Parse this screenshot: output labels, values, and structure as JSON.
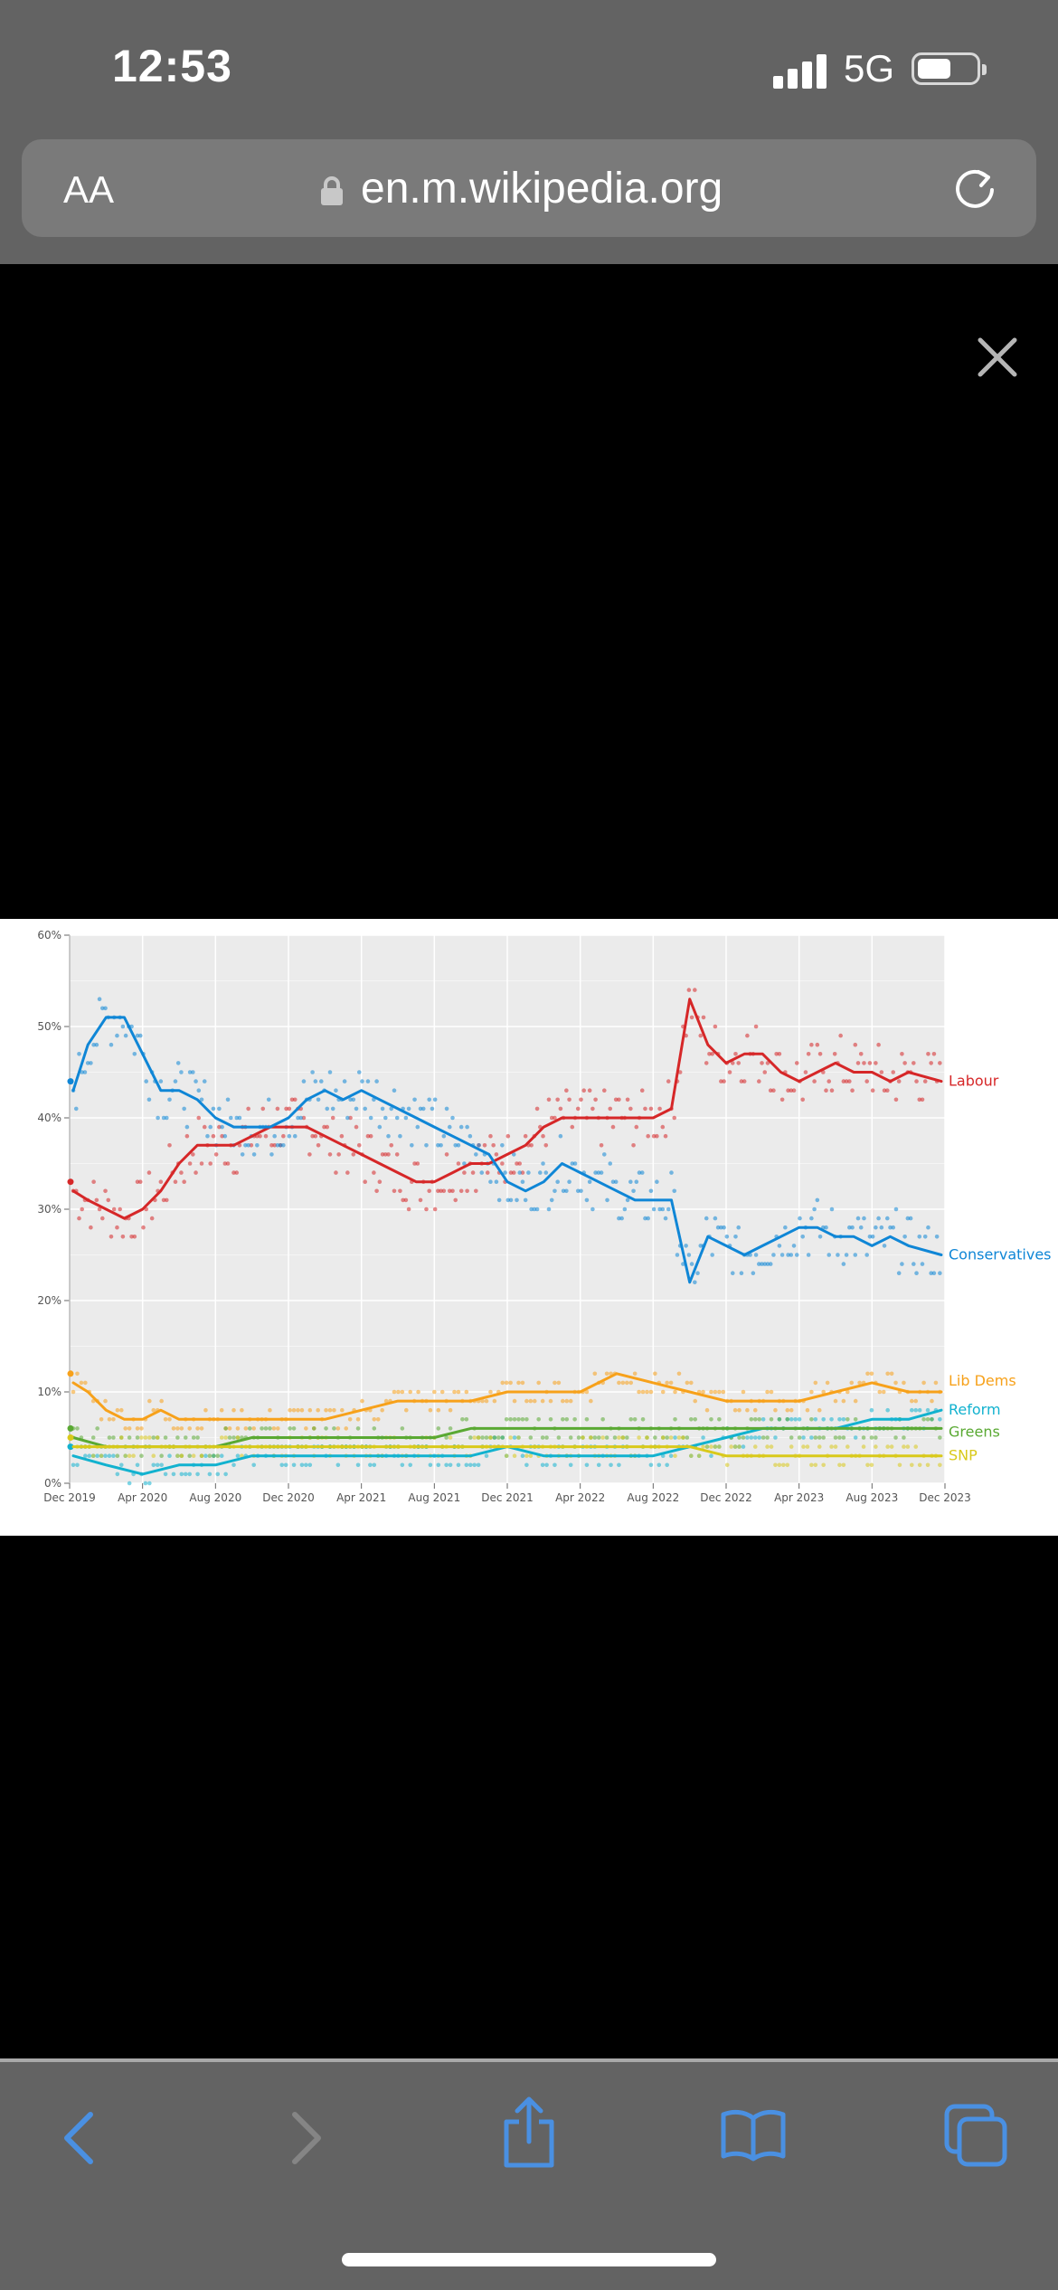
{
  "status_bar": {
    "time": "12:53",
    "network": "5G"
  },
  "address_bar": {
    "text_size_label": "AA",
    "url": "en.m.wikipedia.org"
  },
  "icons": {
    "signal": "cellular-signal-icon",
    "battery": "battery-icon",
    "lock": "lock-icon",
    "reload": "reload-icon",
    "close": "close-icon",
    "back": "back-chevron-icon",
    "forward": "forward-chevron-icon",
    "share": "share-icon",
    "bookmarks": "bookmarks-book-icon",
    "tabs": "tabs-icon"
  },
  "colors": {
    "browser_chrome": "#636363",
    "toolbar_accent": "#4a90e2",
    "labour": "#d62728",
    "conservatives": "#0f86d6",
    "lib_dems": "#f7a11a",
    "reform": "#12b2cf",
    "greens": "#5aa933",
    "snp": "#d9c91a"
  },
  "chart_data": {
    "type": "line",
    "x_tick_labels": [
      "Dec 2019",
      "Apr 2020",
      "Aug 2020",
      "Dec 2020",
      "Apr 2021",
      "Aug 2021",
      "Dec 2021",
      "Apr 2022",
      "Aug 2022",
      "Dec 2022",
      "Apr 2023",
      "Aug 2023",
      "Dec 2023"
    ],
    "y_tick_labels": [
      "0%",
      "10%",
      "20%",
      "30%",
      "40%",
      "50%",
      "60%"
    ],
    "x_range_months": [
      0,
      48
    ],
    "ylim": [
      0,
      60
    ],
    "grid": true,
    "legend_placement": "right end labels",
    "series": [
      {
        "name": "Labour",
        "color": "#d62728",
        "points": [
          [
            0.2,
            32
          ],
          [
            1,
            31
          ],
          [
            2,
            30
          ],
          [
            3,
            29
          ],
          [
            4,
            30
          ],
          [
            5,
            32
          ],
          [
            6,
            35
          ],
          [
            7,
            37
          ],
          [
            8,
            37
          ],
          [
            9,
            37
          ],
          [
            10,
            38
          ],
          [
            11,
            39
          ],
          [
            12,
            39
          ],
          [
            13,
            39
          ],
          [
            14,
            38
          ],
          [
            15,
            37
          ],
          [
            16,
            36
          ],
          [
            17,
            35
          ],
          [
            18,
            34
          ],
          [
            19,
            33
          ],
          [
            20,
            33
          ],
          [
            21,
            34
          ],
          [
            22,
            35
          ],
          [
            23,
            35
          ],
          [
            24,
            36
          ],
          [
            25,
            37
          ],
          [
            26,
            39
          ],
          [
            27,
            40
          ],
          [
            28,
            40
          ],
          [
            29,
            40
          ],
          [
            30,
            40
          ],
          [
            31,
            40
          ],
          [
            32,
            40
          ],
          [
            33,
            41
          ],
          [
            34,
            53
          ],
          [
            35,
            48
          ],
          [
            36,
            46
          ],
          [
            37,
            47
          ],
          [
            38,
            47
          ],
          [
            39,
            45
          ],
          [
            40,
            44
          ],
          [
            41,
            45
          ],
          [
            42,
            46
          ],
          [
            43,
            45
          ],
          [
            44,
            45
          ],
          [
            45,
            44
          ],
          [
            46,
            45
          ],
          [
            47.8,
            44
          ]
        ]
      },
      {
        "name": "Conservatives",
        "color": "#0f86d6",
        "points": [
          [
            0.2,
            43
          ],
          [
            1,
            48
          ],
          [
            2,
            51
          ],
          [
            3,
            51
          ],
          [
            4,
            47
          ],
          [
            5,
            43
          ],
          [
            6,
            43
          ],
          [
            7,
            42
          ],
          [
            8,
            40
          ],
          [
            9,
            39
          ],
          [
            10,
            39
          ],
          [
            11,
            39
          ],
          [
            12,
            40
          ],
          [
            13,
            42
          ],
          [
            14,
            43
          ],
          [
            15,
            42
          ],
          [
            16,
            43
          ],
          [
            17,
            42
          ],
          [
            18,
            41
          ],
          [
            19,
            40
          ],
          [
            20,
            39
          ],
          [
            21,
            38
          ],
          [
            22,
            37
          ],
          [
            23,
            36
          ],
          [
            24,
            33
          ],
          [
            25,
            32
          ],
          [
            26,
            33
          ],
          [
            27,
            35
          ],
          [
            28,
            34
          ],
          [
            29,
            33
          ],
          [
            30,
            32
          ],
          [
            31,
            31
          ],
          [
            32,
            31
          ],
          [
            33,
            31
          ],
          [
            34,
            22
          ],
          [
            35,
            27
          ],
          [
            36,
            26
          ],
          [
            37,
            25
          ],
          [
            38,
            26
          ],
          [
            39,
            27
          ],
          [
            40,
            28
          ],
          [
            41,
            28
          ],
          [
            42,
            27
          ],
          [
            43,
            27
          ],
          [
            44,
            26
          ],
          [
            45,
            27
          ],
          [
            46,
            26
          ],
          [
            47.8,
            25
          ]
        ]
      },
      {
        "name": "Lib Dems",
        "color": "#f7a11a",
        "points": [
          [
            0.2,
            11
          ],
          [
            1,
            10
          ],
          [
            2,
            8
          ],
          [
            3,
            7
          ],
          [
            4,
            7
          ],
          [
            5,
            8
          ],
          [
            6,
            7
          ],
          [
            8,
            7
          ],
          [
            10,
            7
          ],
          [
            12,
            7
          ],
          [
            14,
            7
          ],
          [
            16,
            8
          ],
          [
            18,
            9
          ],
          [
            20,
            9
          ],
          [
            22,
            9
          ],
          [
            24,
            10
          ],
          [
            26,
            10
          ],
          [
            28,
            10
          ],
          [
            30,
            12
          ],
          [
            32,
            11
          ],
          [
            34,
            10
          ],
          [
            36,
            9
          ],
          [
            38,
            9
          ],
          [
            40,
            9
          ],
          [
            42,
            10
          ],
          [
            44,
            11
          ],
          [
            46,
            10
          ],
          [
            47.8,
            10
          ]
        ]
      },
      {
        "name": "Reform",
        "color": "#12b2cf",
        "points": [
          [
            0.2,
            3
          ],
          [
            2,
            2
          ],
          [
            4,
            1
          ],
          [
            6,
            2
          ],
          [
            8,
            2
          ],
          [
            10,
            3
          ],
          [
            12,
            3
          ],
          [
            14,
            3
          ],
          [
            16,
            3
          ],
          [
            18,
            3
          ],
          [
            20,
            3
          ],
          [
            22,
            3
          ],
          [
            24,
            4
          ],
          [
            26,
            3
          ],
          [
            28,
            3
          ],
          [
            30,
            3
          ],
          [
            32,
            3
          ],
          [
            34,
            4
          ],
          [
            36,
            5
          ],
          [
            38,
            6
          ],
          [
            40,
            6
          ],
          [
            42,
            6
          ],
          [
            44,
            7
          ],
          [
            46,
            7
          ],
          [
            47.8,
            8
          ]
        ]
      },
      {
        "name": "Greens",
        "color": "#5aa933",
        "points": [
          [
            0.2,
            5
          ],
          [
            2,
            4
          ],
          [
            4,
            4
          ],
          [
            6,
            4
          ],
          [
            8,
            4
          ],
          [
            10,
            5
          ],
          [
            12,
            5
          ],
          [
            14,
            5
          ],
          [
            16,
            5
          ],
          [
            18,
            5
          ],
          [
            20,
            5
          ],
          [
            22,
            6
          ],
          [
            24,
            6
          ],
          [
            26,
            6
          ],
          [
            28,
            6
          ],
          [
            30,
            6
          ],
          [
            32,
            6
          ],
          [
            34,
            6
          ],
          [
            36,
            6
          ],
          [
            38,
            6
          ],
          [
            40,
            6
          ],
          [
            42,
            6
          ],
          [
            44,
            6
          ],
          [
            46,
            6
          ],
          [
            47.8,
            6
          ]
        ]
      },
      {
        "name": "SNP",
        "color": "#d9c91a",
        "points": [
          [
            0.2,
            4
          ],
          [
            2,
            4
          ],
          [
            4,
            4
          ],
          [
            6,
            4
          ],
          [
            8,
            4
          ],
          [
            10,
            4
          ],
          [
            12,
            4
          ],
          [
            14,
            4
          ],
          [
            16,
            4
          ],
          [
            18,
            4
          ],
          [
            20,
            4
          ],
          [
            22,
            4
          ],
          [
            24,
            4
          ],
          [
            26,
            4
          ],
          [
            28,
            4
          ],
          [
            30,
            4
          ],
          [
            32,
            4
          ],
          [
            34,
            4
          ],
          [
            36,
            3
          ],
          [
            38,
            3
          ],
          [
            40,
            3
          ],
          [
            42,
            3
          ],
          [
            44,
            3
          ],
          [
            46,
            3
          ],
          [
            47.8,
            3
          ]
        ]
      }
    ]
  }
}
